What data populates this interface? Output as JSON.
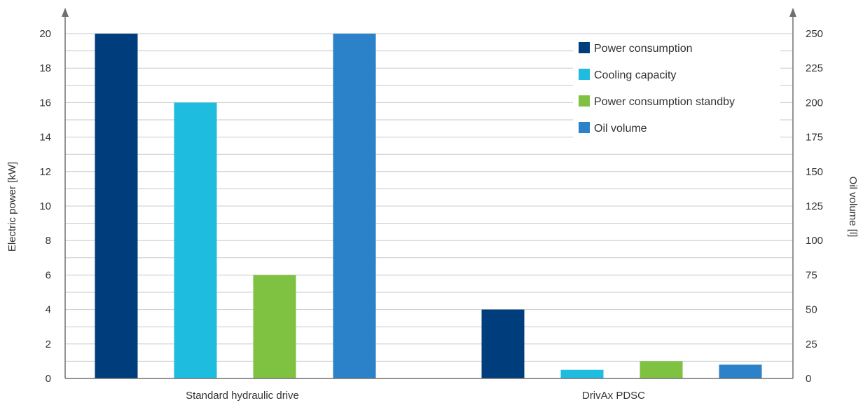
{
  "chart_data": {
    "type": "bar",
    "categories": [
      "Standard hydraulic drive",
      "DrivAx PDSC"
    ],
    "left_axis": {
      "label": "Electric power [kW]",
      "ylim": [
        0,
        20
      ],
      "ticks": [
        0,
        2,
        4,
        6,
        8,
        10,
        12,
        14,
        16,
        18,
        20
      ]
    },
    "right_axis": {
      "label": "Oil volume [l]",
      "ylim": [
        0,
        250
      ],
      "ticks": [
        0,
        25,
        50,
        75,
        100,
        125,
        150,
        175,
        200,
        225,
        250
      ]
    },
    "series": [
      {
        "name": "Power consumption",
        "axis": "left",
        "color": "#003d7c",
        "values": [
          20,
          4
        ]
      },
      {
        "name": "Cooling capacity",
        "axis": "left",
        "color": "#1ebde0",
        "values": [
          16,
          0.5
        ]
      },
      {
        "name": "Power consumption standby",
        "axis": "left",
        "color": "#7fc241",
        "values": [
          6,
          1
        ]
      },
      {
        "name": "Oil volume",
        "axis": "right",
        "color": "#2b82c9",
        "values": [
          250,
          10
        ]
      }
    ],
    "grid": true,
    "legend_position": "top-right"
  },
  "colors": {
    "grid": "#c8c8c8",
    "axis": "#707070",
    "text": "#333333"
  }
}
